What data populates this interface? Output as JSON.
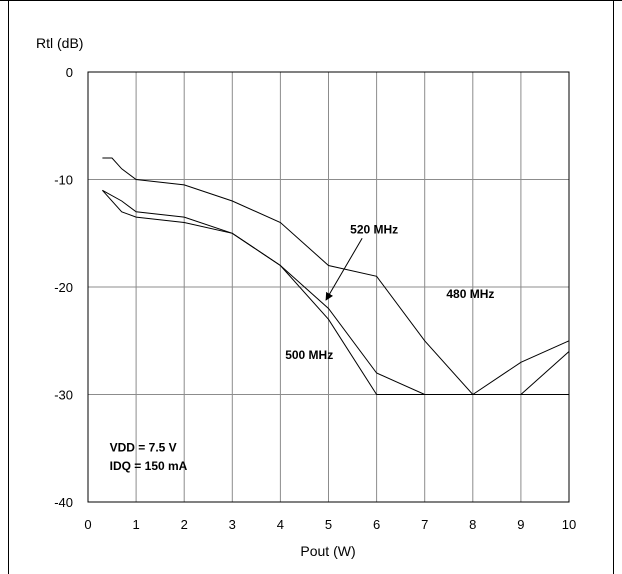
{
  "chart_data": {
    "type": "line",
    "ylabel": "Rtl (dB)",
    "xlabel": "Pout (W)",
    "xlim": [
      0,
      10
    ],
    "ylim": [
      -40,
      0
    ],
    "x_ticks": [
      "0",
      "1",
      "2",
      "3",
      "4",
      "5",
      "6",
      "7",
      "8",
      "9",
      "10"
    ],
    "y_ticks": [
      "0",
      "-10",
      "-20",
      "-30",
      "-40"
    ],
    "grid": true,
    "series": [
      {
        "name": "480 MHz",
        "x": [
          0.3,
          0.5,
          0.7,
          1,
          2,
          3,
          4,
          5,
          6,
          7,
          8,
          9,
          10
        ],
        "y": [
          -8,
          -8,
          -9,
          -10,
          -10.5,
          -12,
          -14,
          -18,
          -19,
          -25,
          -30,
          -27,
          -25
        ]
      },
      {
        "name": "500 MHz",
        "x": [
          0.3,
          0.7,
          1,
          2,
          3,
          4,
          5,
          6,
          7,
          8,
          9,
          10
        ],
        "y": [
          -11,
          -12,
          -13,
          -13.5,
          -15,
          -18,
          -23,
          -30,
          -30,
          -30,
          -30,
          -30
        ]
      },
      {
        "name": "520 MHz",
        "x": [
          0.3,
          0.7,
          1,
          2,
          3,
          4,
          5,
          6,
          7,
          8,
          9,
          10
        ],
        "y": [
          -11,
          -13,
          -13.5,
          -14,
          -15,
          -18,
          -22,
          -28,
          -30,
          -30,
          -30,
          -26
        ]
      }
    ],
    "annotations": [
      {
        "text": "520 MHz",
        "x": 5.45,
        "y": -15,
        "arrow_to": [
          4.95,
          -21.2
        ]
      },
      {
        "text": "480 MHz",
        "x": 7.45,
        "y": -21
      },
      {
        "text": "500 MHz",
        "x": 4.1,
        "y": -26.7
      },
      {
        "text": "VDD = 7.5 V",
        "x": 0.45,
        "y": -35.3
      },
      {
        "text": "IDQ = 150 mA",
        "x": 0.45,
        "y": -37
      }
    ]
  }
}
